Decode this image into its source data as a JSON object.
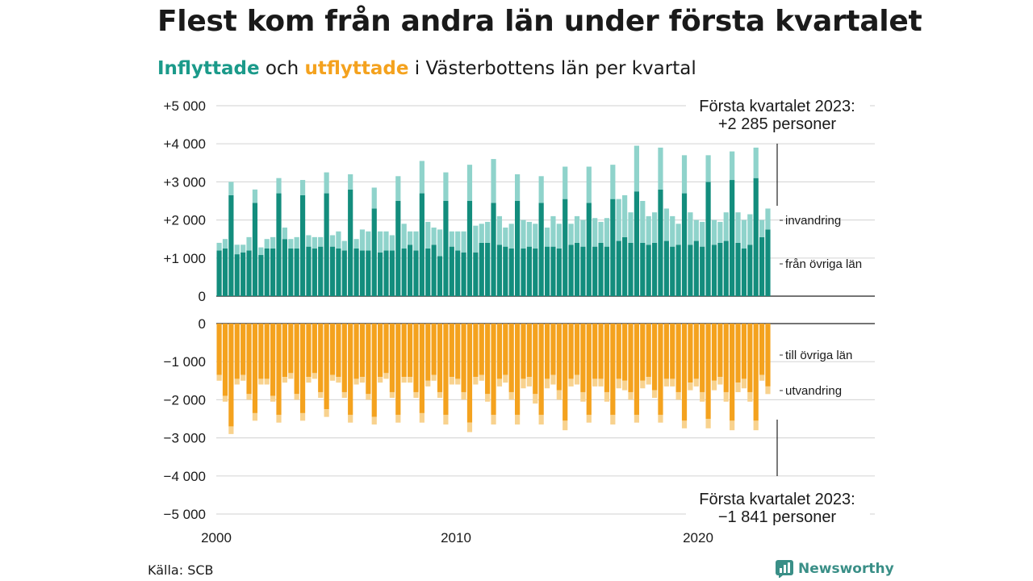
{
  "title": "Flest kom från andra län under första kvartalet",
  "subtitle": {
    "part1": "Inflyttade",
    "part2": " och ",
    "part3": "utflyttade",
    "part4": " i Västerbottens län per kvartal"
  },
  "source": "Källa: SCB",
  "brand": {
    "name": "Newsworthy",
    "icon": "bar-chart-logo-icon"
  },
  "colors": {
    "inflow_other": "#138d7d",
    "inflow_immigration": "#8fd3cb",
    "outflow_other": "#f4a21e",
    "outflow_emigration": "#f8d28e",
    "grid": "#d9d9d9",
    "axis": "#222222"
  },
  "chart_data": {
    "type": "bar",
    "stacked": true,
    "grid": true,
    "x_ticks": [
      "2000",
      "2010",
      "2020"
    ],
    "panels": [
      {
        "name": "inflyttade",
        "y_ticks": [
          "+5 000",
          "+4 000",
          "+3 000",
          "+2 000",
          "+1 000",
          "0"
        ],
        "ylim": [
          0,
          5000
        ],
        "series_labels": [
          "invandring",
          "från övriga län"
        ],
        "annotation": [
          "Första kvartalet 2023:",
          "+2 285 personer"
        ]
      },
      {
        "name": "utflyttade",
        "y_ticks": [
          "0",
          "−1 000",
          "−2 000",
          "−3 000",
          "−4 000",
          "−5 000"
        ],
        "ylim": [
          -5000,
          0
        ],
        "series_labels": [
          "till övriga län",
          "utvandring"
        ],
        "annotation": [
          "Första kvartalet 2023:",
          "−1 841 personer"
        ]
      }
    ],
    "x": [
      "2000 Q1",
      "2000 Q2",
      "2000 Q3",
      "2000 Q4",
      "2001 Q1",
      "2001 Q2",
      "2001 Q3",
      "2001 Q4",
      "2002 Q1",
      "2002 Q2",
      "2002 Q3",
      "2002 Q4",
      "2003 Q1",
      "2003 Q2",
      "2003 Q3",
      "2003 Q4",
      "2004 Q1",
      "2004 Q2",
      "2004 Q3",
      "2004 Q4",
      "2005 Q1",
      "2005 Q2",
      "2005 Q3",
      "2005 Q4",
      "2006 Q1",
      "2006 Q2",
      "2006 Q3",
      "2006 Q4",
      "2007 Q1",
      "2007 Q2",
      "2007 Q3",
      "2007 Q4",
      "2008 Q1",
      "2008 Q2",
      "2008 Q3",
      "2008 Q4",
      "2009 Q1",
      "2009 Q2",
      "2009 Q3",
      "2009 Q4",
      "2010 Q1",
      "2010 Q2",
      "2010 Q3",
      "2010 Q4",
      "2011 Q1",
      "2011 Q2",
      "2011 Q3",
      "2011 Q4",
      "2012 Q1",
      "2012 Q2",
      "2012 Q3",
      "2012 Q4",
      "2013 Q1",
      "2013 Q2",
      "2013 Q3",
      "2013 Q4",
      "2014 Q1",
      "2014 Q2",
      "2014 Q3",
      "2014 Q4",
      "2015 Q1",
      "2015 Q2",
      "2015 Q3",
      "2015 Q4",
      "2016 Q1",
      "2016 Q2",
      "2016 Q3",
      "2016 Q4",
      "2017 Q1",
      "2017 Q2",
      "2017 Q3",
      "2017 Q4",
      "2018 Q1",
      "2018 Q2",
      "2018 Q3",
      "2018 Q4",
      "2019 Q1",
      "2019 Q2",
      "2019 Q3",
      "2019 Q4",
      "2020 Q1",
      "2020 Q2",
      "2020 Q3",
      "2020 Q4",
      "2021 Q1",
      "2021 Q2",
      "2021 Q3",
      "2021 Q4",
      "2022 Q1",
      "2022 Q2",
      "2022 Q3",
      "2022 Q4",
      "2023 Q1"
    ],
    "series": [
      {
        "name": "från övriga län",
        "panel": 0,
        "values": [
          1200,
          1250,
          2650,
          1100,
          1150,
          1200,
          2450,
          1080,
          1250,
          1250,
          2700,
          1500,
          1250,
          1250,
          2650,
          1300,
          1250,
          1300,
          2700,
          1300,
          1250,
          1200,
          2800,
          1250,
          1200,
          1200,
          2300,
          1150,
          1200,
          1200,
          2500,
          1250,
          1350,
          1200,
          2700,
          1250,
          1350,
          1050,
          2500,
          1300,
          1200,
          1150,
          2500,
          1150,
          1400,
          1400,
          2450,
          1350,
          1300,
          1250,
          2500,
          1250,
          1300,
          1250,
          2450,
          1300,
          1300,
          1250,
          2550,
          1350,
          1400,
          1300,
          2450,
          1300,
          1400,
          1300,
          2550,
          1450,
          1550,
          1400,
          2750,
          1400,
          1350,
          1400,
          2800,
          1450,
          1300,
          1350,
          2700,
          1350,
          1450,
          1300,
          3000,
          1350,
          1400,
          1450,
          3050,
          1400,
          1250,
          1350,
          3100,
          1550,
          1750
        ]
      },
      {
        "name": "invandring",
        "panel": 0,
        "values": [
          200,
          250,
          350,
          250,
          200,
          350,
          350,
          200,
          250,
          300,
          400,
          300,
          250,
          300,
          400,
          300,
          300,
          250,
          550,
          300,
          450,
          250,
          400,
          250,
          550,
          500,
          550,
          550,
          500,
          400,
          650,
          650,
          350,
          500,
          850,
          700,
          450,
          700,
          750,
          400,
          500,
          550,
          950,
          700,
          500,
          550,
          1150,
          750,
          500,
          650,
          700,
          750,
          650,
          650,
          700,
          500,
          800,
          650,
          850,
          550,
          700,
          700,
          950,
          750,
          550,
          750,
          900,
          1100,
          1100,
          800,
          1200,
          1100,
          750,
          800,
          1100,
          850,
          800,
          550,
          1000,
          850,
          550,
          650,
          700,
          650,
          550,
          750,
          750,
          800,
          750,
          800,
          800,
          450,
          550
        ]
      },
      {
        "name": "till övriga län",
        "panel": 1,
        "values": [
          1350,
          1900,
          2700,
          1450,
          1350,
          1850,
          2350,
          1450,
          1450,
          1900,
          2400,
          1400,
          1300,
          1850,
          2350,
          1400,
          1300,
          1800,
          2250,
          1350,
          1400,
          1800,
          2400,
          1450,
          1400,
          1850,
          2450,
          1400,
          1300,
          1800,
          2400,
          1400,
          1400,
          1800,
          2350,
          1500,
          1350,
          1800,
          2400,
          1400,
          1450,
          1800,
          2600,
          1400,
          1350,
          1850,
          2400,
          1450,
          1350,
          1800,
          2400,
          1450,
          1400,
          1850,
          2400,
          1450,
          1350,
          1750,
          2550,
          1450,
          1350,
          1800,
          2400,
          1450,
          1450,
          1800,
          2400,
          1450,
          1500,
          1800,
          2400,
          1500,
          1400,
          1750,
          2400,
          1450,
          1450,
          1800,
          2550,
          1550,
          1450,
          1800,
          2500,
          1500,
          1400,
          1800,
          2550,
          1550,
          1450,
          1800,
          2550,
          1350,
          1650
        ]
      },
      {
        "name": "utvandring",
        "panel": 1,
        "values": [
          150,
          150,
          200,
          150,
          150,
          150,
          200,
          150,
          150,
          150,
          200,
          150,
          150,
          150,
          200,
          150,
          150,
          150,
          200,
          150,
          150,
          150,
          200,
          150,
          150,
          150,
          200,
          150,
          150,
          150,
          200,
          150,
          150,
          150,
          250,
          150,
          150,
          150,
          250,
          200,
          150,
          200,
          250,
          200,
          150,
          200,
          250,
          200,
          200,
          200,
          250,
          250,
          250,
          250,
          250,
          250,
          250,
          250,
          250,
          200,
          250,
          250,
          200,
          200,
          200,
          250,
          250,
          250,
          250,
          200,
          200,
          200,
          200,
          200,
          200,
          200,
          200,
          200,
          200,
          200,
          200,
          250,
          250,
          250,
          200,
          250,
          250,
          250,
          250,
          250,
          250,
          150,
          200
        ]
      }
    ]
  }
}
